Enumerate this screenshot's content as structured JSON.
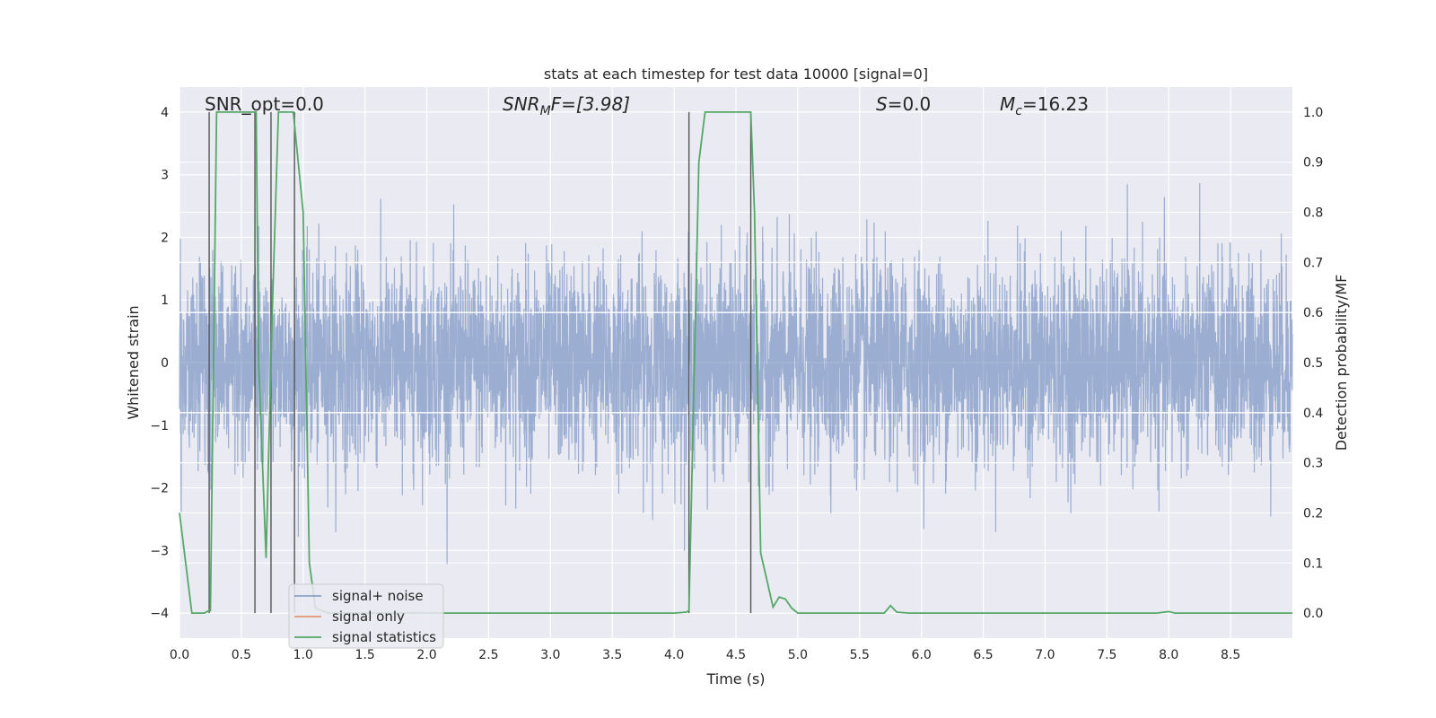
{
  "chart_data": {
    "type": "line",
    "title": "stats at each timestep for test data 10000 [signal=0]",
    "xlabel": "Time (s)",
    "ylabel": "Whitened strain",
    "ylabel_right": "Detection probability/MF",
    "xlim": [
      0,
      9.0
    ],
    "ylim": [
      -4.4,
      4.4
    ],
    "ylim_right": [
      -0.05,
      1.05
    ],
    "xticks": [
      0.0,
      0.5,
      1.0,
      1.5,
      2.0,
      2.5,
      3.0,
      3.5,
      4.0,
      4.5,
      5.0,
      5.5,
      6.0,
      6.5,
      7.0,
      7.5,
      8.0,
      8.5
    ],
    "xtick_labels": [
      "0.0",
      "0.5",
      "1.0",
      "1.5",
      "2.0",
      "2.5",
      "3.0",
      "3.5",
      "4.0",
      "4.5",
      "5.0",
      "5.5",
      "6.0",
      "6.5",
      "7.0",
      "7.5",
      "8.0",
      "8.5"
    ],
    "yticks": [
      4,
      3,
      2,
      1,
      0,
      -1,
      -2,
      -3,
      -4
    ],
    "ytick_labels": [
      "4",
      "3",
      "2",
      "1",
      "0",
      "−1",
      "−2",
      "−3",
      "−4"
    ],
    "yticks_right": [
      1.0,
      0.9,
      0.8,
      0.7,
      0.6,
      0.5,
      0.4,
      0.3,
      0.2,
      0.1,
      0.0
    ],
    "ytick_labels_right": [
      "1.0",
      "0.9",
      "0.8",
      "0.7",
      "0.6",
      "0.5",
      "0.4",
      "0.3",
      "0.2",
      "0.1",
      "0.0"
    ],
    "annotations": {
      "snr_opt": "SNR_opt=0.0",
      "snr_mf_prefix": "SNR",
      "snr_mf_sub": "M",
      "snr_mf_suffix": "F=[3.98]",
      "s_italic": "S",
      "s_value": "=0.0",
      "mc_italic": "M",
      "mc_sub": "c",
      "mc_value": "=16.23"
    },
    "legend": {
      "placement": "lower-left",
      "entries": [
        "signal+ noise",
        "signal only",
        "signal statistics"
      ]
    },
    "series": [
      {
        "name": "signal+ noise",
        "color": "#4c72b0",
        "description_stats": {
          "std": 0.8,
          "duration": 9.0,
          "seed": 10000
        }
      },
      {
        "name": "signal only",
        "color": "#dd8452",
        "values": [
          0
        ]
      },
      {
        "name": "signal statistics",
        "color": "#55a868",
        "axis": "right",
        "x": [
          0.0,
          0.05,
          0.1,
          0.2,
          0.24,
          0.25,
          0.3,
          0.6,
          0.62,
          0.64,
          0.7,
          0.75,
          0.8,
          0.92,
          1.0,
          1.05,
          1.1,
          1.2,
          1.5,
          2.0,
          2.5,
          3.0,
          3.5,
          4.0,
          4.1,
          4.12,
          4.2,
          4.25,
          4.62,
          4.65,
          4.7,
          4.8,
          4.85,
          4.9,
          4.95,
          5.0,
          5.5,
          5.7,
          5.75,
          5.8,
          5.9,
          6.5,
          7.0,
          7.5,
          7.9,
          8.0,
          8.05,
          8.5,
          9.0
        ],
        "y": [
          0.2,
          0.1,
          0.0,
          0.0,
          0.005,
          0.005,
          1.0,
          1.0,
          1.0,
          0.5,
          0.11,
          0.6,
          1.0,
          1.0,
          0.8,
          0.1,
          0.01,
          0.0,
          0.0,
          0.0,
          0.0,
          0.0,
          0.0,
          0.0,
          0.002,
          0.005,
          0.9,
          1.0,
          1.0,
          0.8,
          0.12,
          0.012,
          0.032,
          0.028,
          0.01,
          0.0,
          0.0,
          0.0,
          0.015,
          0.002,
          0.0,
          0.0,
          0.0,
          0.0,
          0.0,
          0.003,
          0.0,
          0.0,
          0.0
        ]
      }
    ],
    "vertical_markers": [
      0.24,
      0.61,
      0.74,
      0.93,
      4.12,
      4.62
    ],
    "horizontal_reference_lines": [
      1.6,
      0.8,
      -0.8,
      -1.6
    ],
    "colors": {
      "background": "#eaeaf2",
      "grid": "#ffffff",
      "strain": "#4c72b0",
      "signal": "#dd8452",
      "stats": "#55a868",
      "marker": "#555555"
    }
  }
}
